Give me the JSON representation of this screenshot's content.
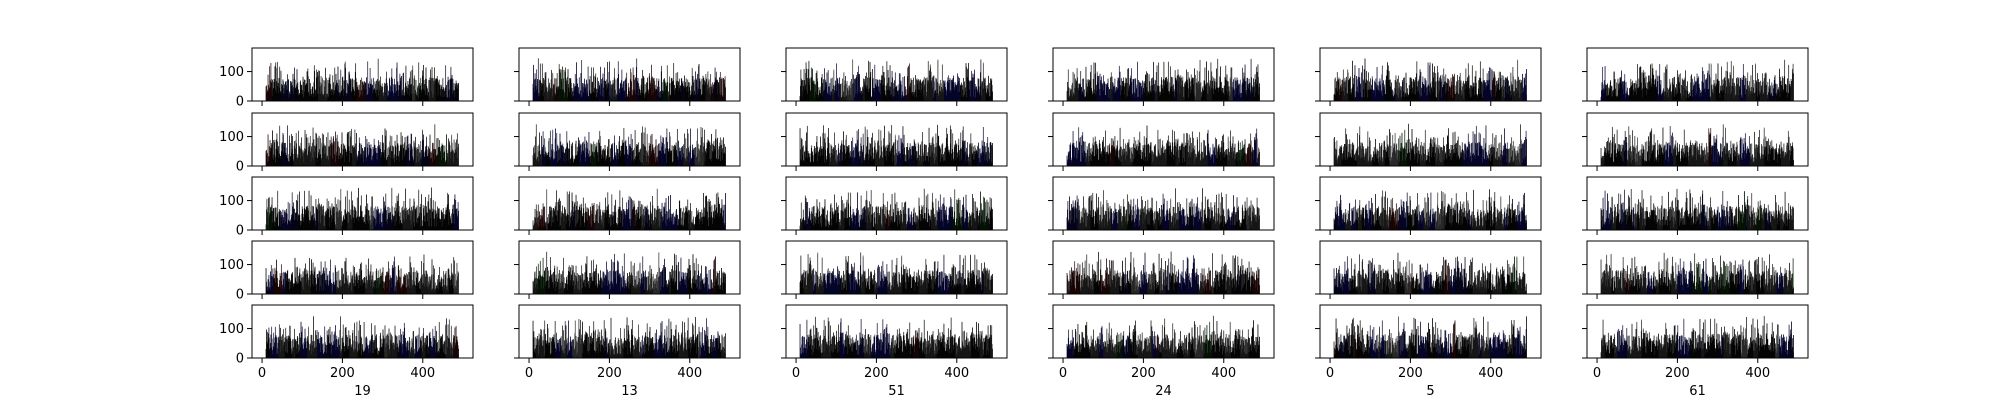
{
  "chart_data": {
    "type": "bar",
    "layout": {
      "rows": 5,
      "cols": 6
    },
    "column_labels": [
      "19",
      "13",
      "51",
      "24",
      "5",
      "61"
    ],
    "x_ticks": [
      0,
      200,
      400
    ],
    "y_ticks": [
      0,
      100
    ],
    "xlim": [
      -25,
      525
    ],
    "ylim": [
      0,
      180
    ],
    "bars_per_panel": 480,
    "bar_value_range": [
      0,
      150
    ],
    "bar_colors": [
      "#000000",
      "#808080",
      "#0000ff",
      "#00008b",
      "#8b0000",
      "#006400",
      "#ffffff"
    ],
    "x_tick_labels_bottom_row_only": true,
    "y_tick_labels_first_column_only": true,
    "grid": false
  }
}
